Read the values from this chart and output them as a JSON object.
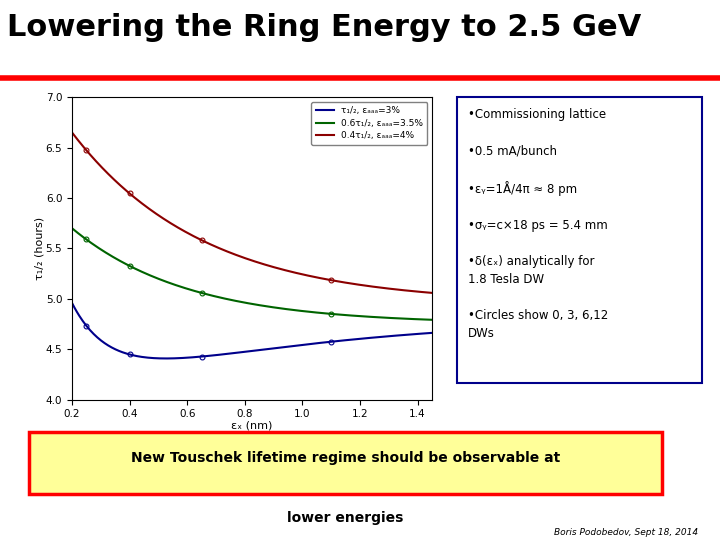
{
  "title": "Lowering the Ring Energy to 2.5 GeV",
  "title_fontsize": 22,
  "xlabel": "εₓ (nm)",
  "ylabel": "τ₁/₂ (hours)",
  "xlim": [
    0.2,
    1.45
  ],
  "ylim": [
    4.0,
    7.0
  ],
  "xticks": [
    0.2,
    0.4,
    0.6,
    0.8,
    1.0,
    1.2,
    1.4
  ],
  "yticks": [
    4.0,
    4.5,
    5.0,
    5.5,
    6.0,
    6.5,
    7.0
  ],
  "legend_labels": [
    "τ₁/₂, εₐₐₐ=3%",
    "0.6τ₁/₂, εₐₐₐ=3.5%",
    "0.4τ₁/₂, εₐₐₐ=4%"
  ],
  "line_colors": [
    "#00008B",
    "#006400",
    "#8B0000"
  ],
  "bullet_text": "•Commissioning lattice\n\n•0.5 mA/bunch\n\n•εᵧ=1Å/4π ≈ 8 pm\n\n•σᵧ=c×18 ps = 5.4 mm\n\n•δ(εₓ) analytically for\n1.8 Tesla DW\n\n•Circles show 0, 3, 6,12\nDWs",
  "bottom_text_line1": "New Touschek lifetime regime should be observable at",
  "bottom_text_line2": "lower energies",
  "attribution": "Boris Podobedov, Sept 18, 2014",
  "bg_color": "#ffffff"
}
